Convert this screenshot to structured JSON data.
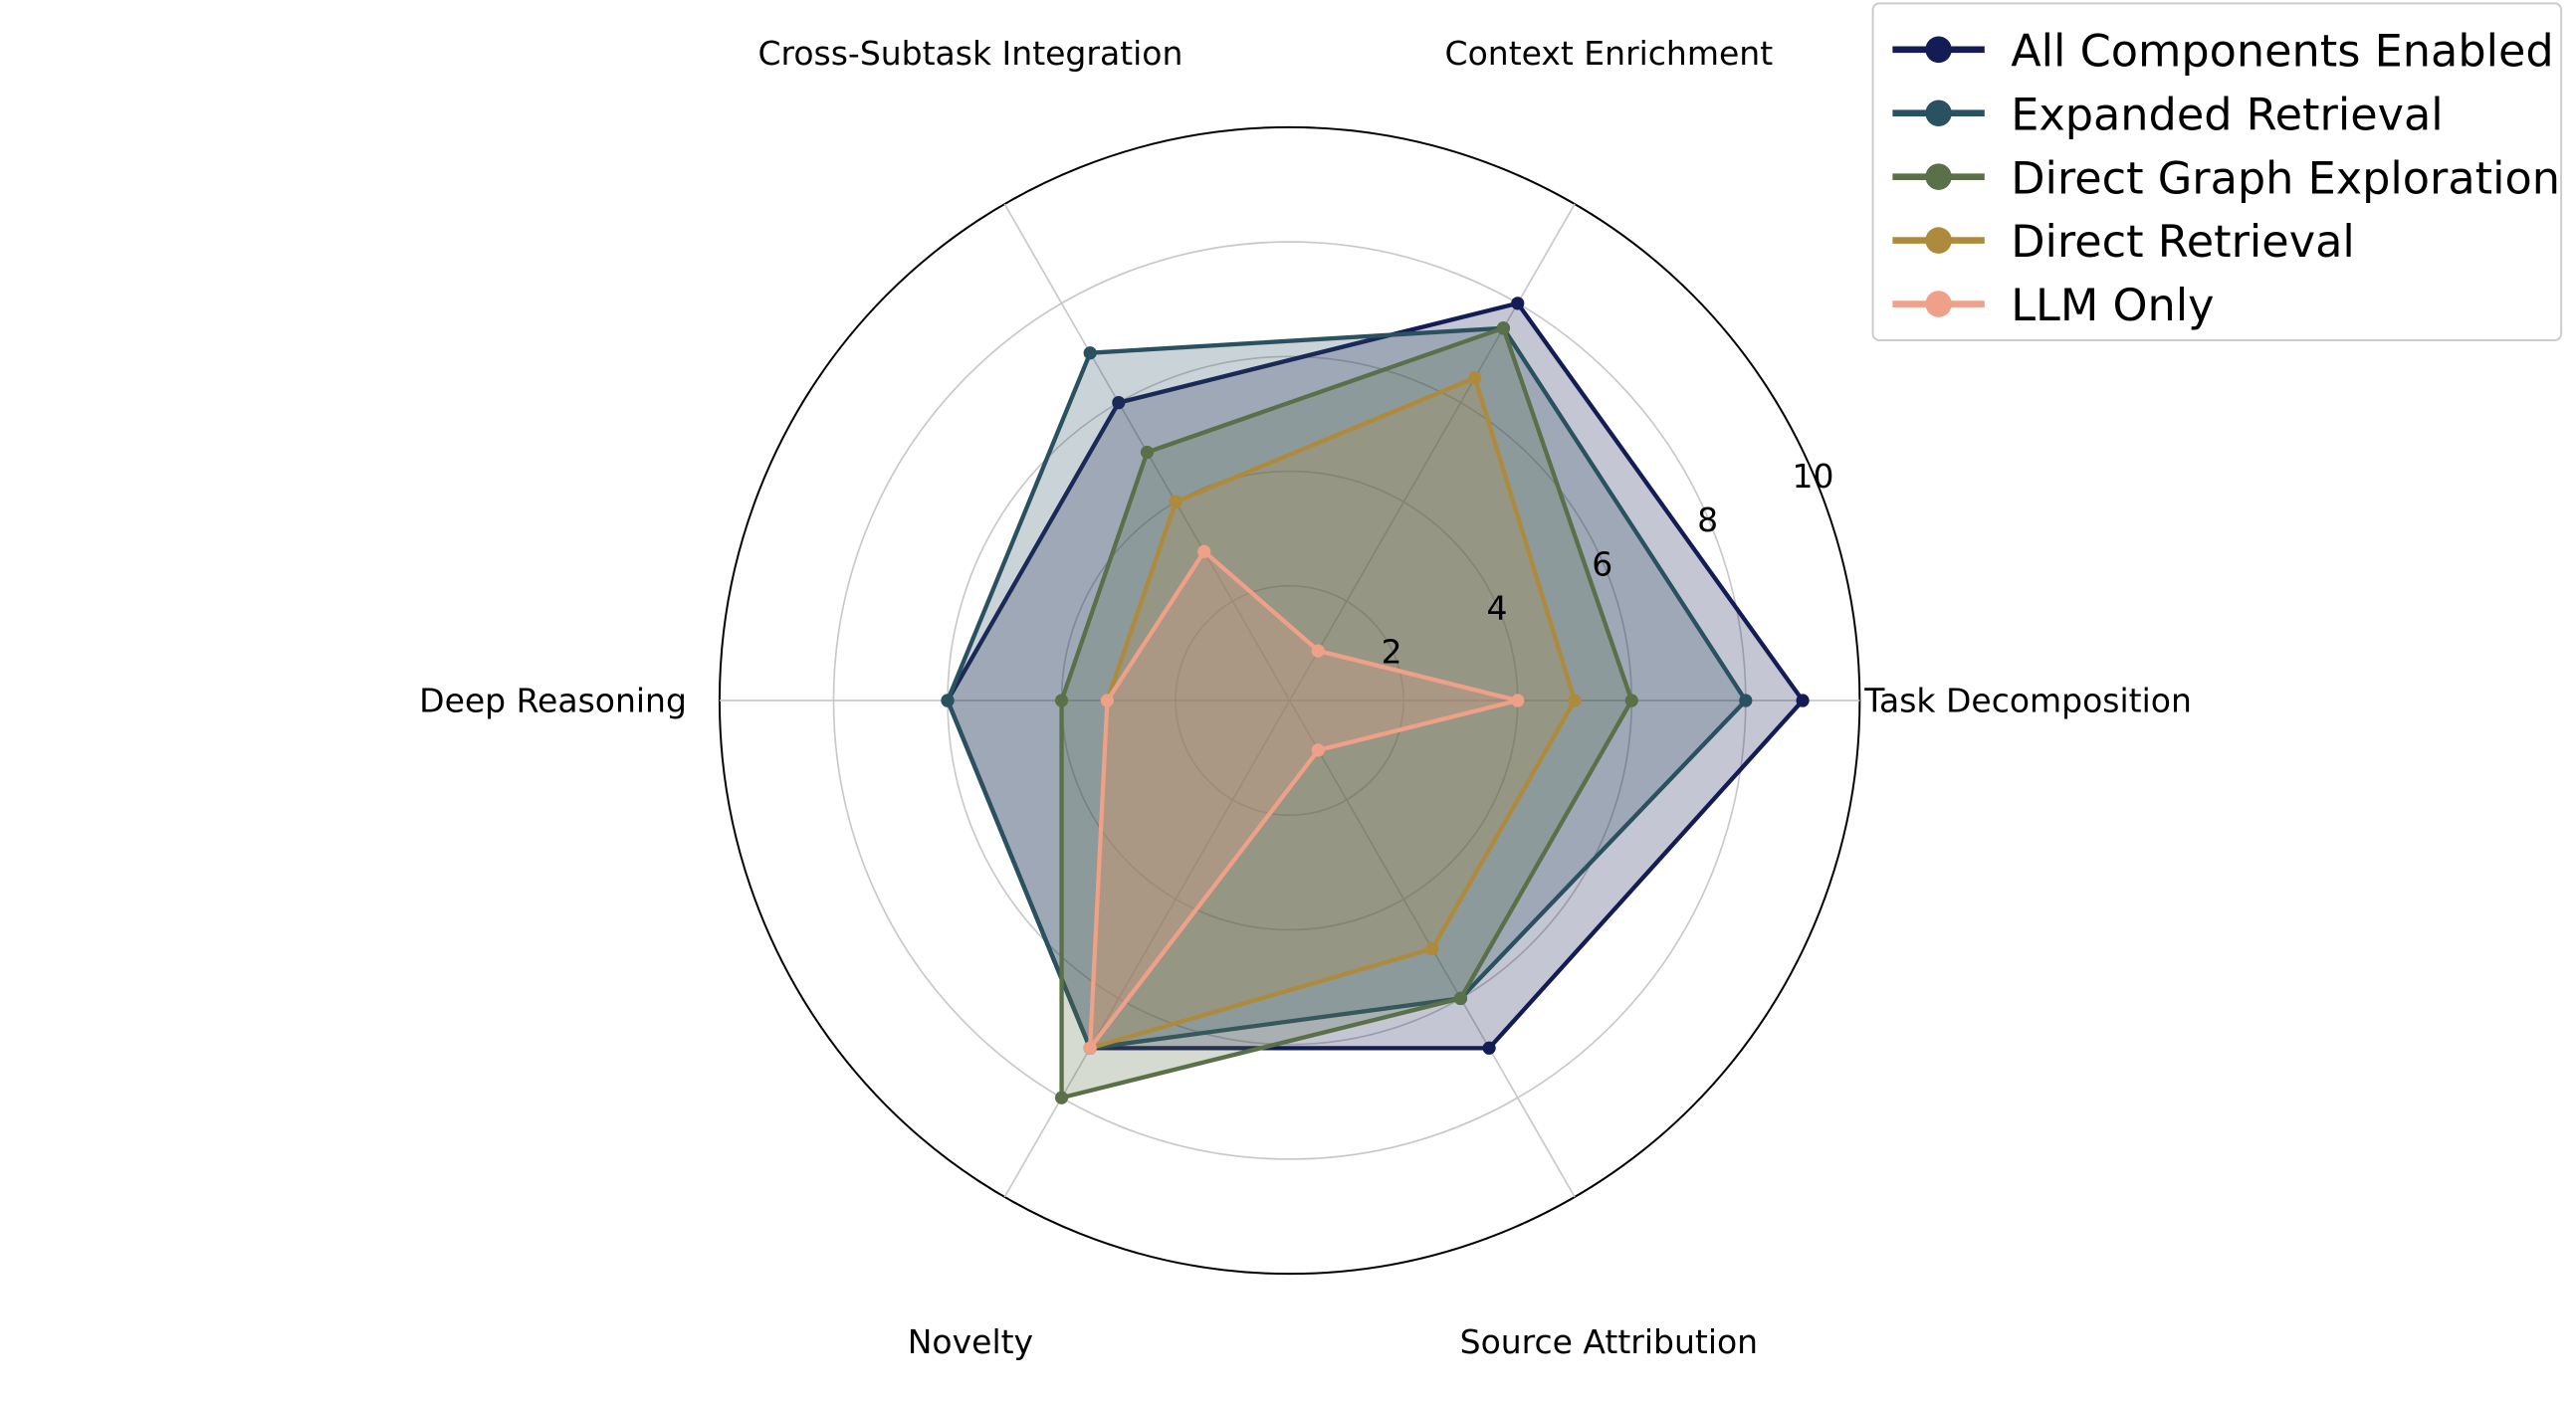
{
  "chart_data": {
    "type": "radar",
    "axes": [
      "Task Decomposition",
      "Context Enrichment",
      "Cross-Subtask Integration",
      "Deep Reasoning",
      "Novelty",
      "Source Attribution"
    ],
    "rlim": [
      0,
      10
    ],
    "radial_ticks": [
      2,
      4,
      6,
      8,
      10
    ],
    "grid": true,
    "legend_position": "top-right",
    "series": [
      {
        "name": "All Components Enabled",
        "color": "#141c55",
        "values": [
          9.0,
          8.0,
          6.0,
          6.0,
          7.0,
          7.0
        ]
      },
      {
        "name": "Expanded Retrieval",
        "color": "#2a5160",
        "values": [
          8.0,
          7.5,
          7.0,
          6.0,
          7.0,
          6.0
        ]
      },
      {
        "name": "Direct Graph Exploration",
        "color": "#5a7048",
        "values": [
          6.0,
          7.5,
          5.0,
          4.0,
          8.0,
          6.0
        ]
      },
      {
        "name": "Direct Retrieval",
        "color": "#ae8a3d",
        "values": [
          5.0,
          6.5,
          4.0,
          3.2,
          7.0,
          5.0
        ]
      },
      {
        "name": "LLM Only",
        "color": "#eea088",
        "values": [
          4.0,
          1.0,
          3.0,
          3.2,
          7.0,
          1.0
        ]
      }
    ]
  }
}
